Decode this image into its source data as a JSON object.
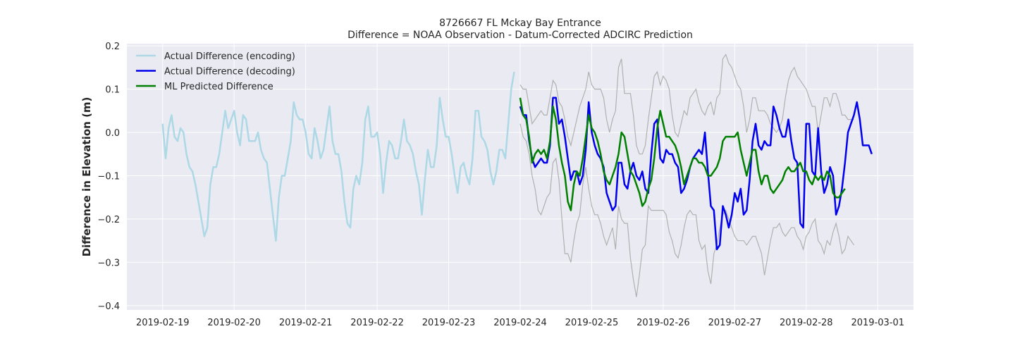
{
  "chart_data": {
    "type": "line",
    "title": "8726667 FL Mckay Bay Entrance",
    "subtitle": "Difference = NOAA Observation - Datum-Corrected ADCIRC Prediction",
    "xlabel": "",
    "ylabel": "Difference in Elevation (m)",
    "xlim": [
      "2019-02-18T12:00",
      "2019-03-01T12:00"
    ],
    "ylim": [
      -0.41,
      0.205
    ],
    "x_ticks": [
      "2019-02-19",
      "2019-02-20",
      "2019-02-21",
      "2019-02-22",
      "2019-02-23",
      "2019-02-24",
      "2019-02-25",
      "2019-02-26",
      "2019-02-27",
      "2019-02-28",
      "2019-03-01"
    ],
    "y_ticks": [
      -0.4,
      -0.3,
      -0.2,
      -0.1,
      0.0,
      0.1,
      0.2
    ],
    "y_tick_labels": [
      "−0.4",
      "−0.3",
      "−0.2",
      "−0.1",
      "0.0",
      "0.1",
      "0.2"
    ],
    "grid": true,
    "legend_position": "top-left",
    "series": [
      {
        "name": "Actual Difference (encoding)",
        "color": "#add8e6",
        "x_start": "2019-02-19T00:00",
        "x_step_hours": 1,
        "values": [
          0.02,
          -0.06,
          0.01,
          0.04,
          -0.01,
          -0.02,
          0.01,
          0.0,
          -0.05,
          -0.08,
          -0.09,
          -0.12,
          -0.16,
          -0.2,
          -0.24,
          -0.22,
          -0.12,
          -0.08,
          -0.08,
          -0.05,
          0.0,
          0.05,
          0.01,
          0.03,
          0.05,
          0.0,
          -0.03,
          0.04,
          0.03,
          -0.02,
          -0.02,
          -0.02,
          0.0,
          -0.04,
          -0.06,
          -0.07,
          -0.13,
          -0.19,
          -0.25,
          -0.15,
          -0.1,
          -0.1,
          -0.06,
          -0.02,
          0.07,
          0.04,
          0.03,
          0.03,
          0.0,
          -0.05,
          -0.06,
          0.01,
          -0.02,
          -0.06,
          -0.04,
          0.01,
          0.06,
          -0.02,
          -0.05,
          -0.05,
          -0.09,
          -0.16,
          -0.21,
          -0.22,
          -0.13,
          -0.1,
          -0.12,
          -0.07,
          0.03,
          0.06,
          -0.01,
          -0.01,
          0.0,
          -0.05,
          -0.14,
          -0.07,
          -0.02,
          -0.03,
          -0.06,
          -0.06,
          -0.02,
          0.03,
          -0.02,
          -0.03,
          -0.05,
          -0.09,
          -0.12,
          -0.19,
          -0.11,
          -0.04,
          -0.08,
          -0.08,
          -0.03,
          0.08,
          0.03,
          -0.01,
          -0.01,
          -0.05,
          -0.1,
          -0.14,
          -0.08,
          -0.07,
          -0.1,
          -0.12,
          -0.06,
          0.05,
          0.05,
          -0.01,
          -0.02,
          -0.04,
          -0.09,
          -0.12,
          -0.09,
          -0.04,
          -0.04,
          -0.06,
          0.02,
          0.1,
          0.14
        ]
      },
      {
        "name": "Actual Difference (decoding)",
        "color": "#0000ee",
        "x_start": "2019-02-24T00:00",
        "x_step_hours": 1,
        "values": [
          0.06,
          0.04,
          0.04,
          -0.02,
          -0.06,
          -0.08,
          -0.07,
          -0.06,
          -0.07,
          -0.07,
          -0.03,
          0.08,
          0.08,
          0.02,
          0.03,
          -0.01,
          -0.06,
          -0.11,
          -0.09,
          -0.09,
          -0.12,
          -0.1,
          -0.04,
          0.07,
          0.0,
          -0.03,
          -0.05,
          -0.06,
          -0.08,
          -0.14,
          -0.16,
          -0.18,
          -0.17,
          -0.07,
          -0.07,
          -0.12,
          -0.13,
          -0.09,
          -0.07,
          -0.1,
          -0.11,
          -0.09,
          -0.13,
          -0.14,
          -0.05,
          0.02,
          0.03,
          -0.06,
          -0.07,
          -0.04,
          -0.05,
          -0.05,
          -0.07,
          -0.08,
          -0.14,
          -0.13,
          -0.11,
          -0.08,
          -0.06,
          -0.05,
          -0.04,
          -0.05,
          0.0,
          -0.09,
          -0.17,
          -0.18,
          -0.27,
          -0.26,
          -0.17,
          -0.19,
          -0.22,
          -0.19,
          -0.14,
          -0.16,
          -0.13,
          -0.19,
          -0.18,
          -0.11,
          -0.02,
          0.02,
          -0.03,
          -0.04,
          -0.02,
          -0.03,
          -0.03,
          0.06,
          0.04,
          0.01,
          -0.01,
          -0.01,
          0.03,
          -0.02,
          -0.06,
          -0.07,
          -0.21,
          -0.22,
          0.02,
          0.02,
          -0.09,
          -0.1,
          0.01,
          -0.09,
          -0.14,
          -0.12,
          -0.08,
          -0.1,
          -0.19,
          -0.17,
          -0.13,
          -0.07,
          0.0,
          0.02,
          0.04,
          0.07,
          0.03,
          -0.03,
          -0.03,
          -0.03,
          -0.05
        ]
      },
      {
        "name": "ML Predicted Difference",
        "color": "#008000",
        "x_start": "2019-02-24T00:00",
        "x_step_hours": 1,
        "values": [
          0.08,
          0.04,
          0.03,
          -0.01,
          -0.07,
          -0.05,
          -0.04,
          -0.05,
          -0.04,
          -0.06,
          -0.02,
          0.06,
          0.03,
          -0.03,
          -0.07,
          -0.1,
          -0.16,
          -0.18,
          -0.12,
          -0.09,
          -0.1,
          -0.06,
          -0.01,
          0.04,
          0.01,
          0.0,
          -0.02,
          -0.05,
          -0.09,
          -0.11,
          -0.12,
          -0.1,
          -0.08,
          -0.05,
          0.0,
          -0.01,
          -0.05,
          -0.09,
          -0.1,
          -0.12,
          -0.14,
          -0.17,
          -0.16,
          -0.13,
          -0.11,
          -0.06,
          0.01,
          0.05,
          0.02,
          -0.01,
          -0.01,
          -0.02,
          -0.03,
          -0.05,
          -0.08,
          -0.12,
          -0.1,
          -0.08,
          -0.06,
          -0.06,
          -0.07,
          -0.07,
          -0.08,
          -0.1,
          -0.1,
          -0.09,
          -0.08,
          -0.06,
          -0.02,
          -0.01,
          -0.01,
          -0.01,
          -0.01,
          0.0,
          -0.04,
          -0.07,
          -0.1,
          -0.07,
          -0.04,
          -0.04,
          -0.09,
          -0.12,
          -0.1,
          -0.1,
          -0.13,
          -0.14,
          -0.13,
          -0.12,
          -0.11,
          -0.09,
          -0.08,
          -0.09,
          -0.09,
          -0.08,
          -0.07,
          -0.09,
          -0.09,
          -0.11,
          -0.12,
          -0.1,
          -0.11,
          -0.1,
          -0.11,
          -0.09,
          -0.1,
          -0.14,
          -0.15,
          -0.15,
          -0.14,
          -0.13
        ]
      }
    ],
    "bounds": {
      "color": "#b0b0b0",
      "x_start": "2019-02-24T00:00",
      "x_step_hours": 1,
      "upper": [
        0.11,
        0.1,
        0.1,
        0.06,
        0.02,
        0.03,
        0.04,
        0.05,
        0.04,
        0.04,
        0.08,
        0.12,
        0.11,
        0.07,
        0.06,
        0.03,
        -0.01,
        -0.03,
        0.0,
        0.03,
        0.06,
        0.08,
        0.1,
        0.14,
        0.11,
        0.1,
        0.1,
        0.1,
        0.08,
        0.03,
        0.0,
        0.03,
        0.05,
        0.15,
        0.17,
        0.09,
        0.09,
        0.09,
        0.04,
        -0.03,
        -0.05,
        -0.05,
        -0.03,
        0.03,
        0.08,
        0.13,
        0.14,
        0.11,
        0.13,
        0.12,
        0.1,
        0.04,
        0.0,
        -0.01,
        0.02,
        0.05,
        0.04,
        0.08,
        0.09,
        0.1,
        0.07,
        0.05,
        0.04,
        0.06,
        0.07,
        0.04,
        0.08,
        0.09,
        0.17,
        0.18,
        0.16,
        0.15,
        0.13,
        0.11,
        0.1,
        0.06,
        0.0,
        0.03,
        0.08,
        0.08,
        0.05,
        0.05,
        0.05,
        0.04,
        0.02,
        0.01,
        0.0,
        0.01,
        0.03,
        0.08,
        0.12,
        0.14,
        0.15,
        0.13,
        0.12,
        0.11,
        0.1,
        0.08,
        0.06,
        0.06,
        0.0,
        0.04,
        0.08,
        0.08,
        0.06,
        0.09,
        0.09,
        0.07,
        0.04,
        0.04,
        0.03,
        0.03,
        0.03
      ],
      "lower": [
        0.02,
        -0.01,
        -0.02,
        -0.05,
        -0.1,
        -0.13,
        -0.18,
        -0.19,
        -0.17,
        -0.15,
        -0.14,
        -0.07,
        -0.06,
        -0.11,
        -0.2,
        -0.28,
        -0.28,
        -0.3,
        -0.25,
        -0.21,
        -0.19,
        -0.12,
        -0.08,
        -0.13,
        -0.17,
        -0.19,
        -0.19,
        -0.21,
        -0.24,
        -0.26,
        -0.24,
        -0.22,
        -0.27,
        -0.17,
        -0.2,
        -0.21,
        -0.21,
        -0.29,
        -0.34,
        -0.38,
        -0.33,
        -0.27,
        -0.26,
        -0.17,
        -0.18,
        -0.18,
        -0.18,
        -0.18,
        -0.18,
        -0.19,
        -0.23,
        -0.25,
        -0.28,
        -0.29,
        -0.26,
        -0.22,
        -0.19,
        -0.18,
        -0.19,
        -0.19,
        -0.25,
        -0.27,
        -0.26,
        -0.32,
        -0.35,
        -0.28,
        -0.26,
        -0.22,
        -0.19,
        -0.18,
        -0.2,
        -0.22,
        -0.24,
        -0.25,
        -0.25,
        -0.25,
        -0.26,
        -0.25,
        -0.24,
        -0.24,
        -0.26,
        -0.28,
        -0.33,
        -0.29,
        -0.25,
        -0.22,
        -0.22,
        -0.21,
        -0.23,
        -0.24,
        -0.23,
        -0.22,
        -0.22,
        -0.24,
        -0.25,
        -0.27,
        -0.24,
        -0.23,
        -0.21,
        -0.2,
        -0.25,
        -0.26,
        -0.28,
        -0.25,
        -0.26,
        -0.23,
        -0.21,
        -0.24,
        -0.28,
        -0.27,
        -0.24,
        -0.25,
        -0.26
      ]
    }
  }
}
